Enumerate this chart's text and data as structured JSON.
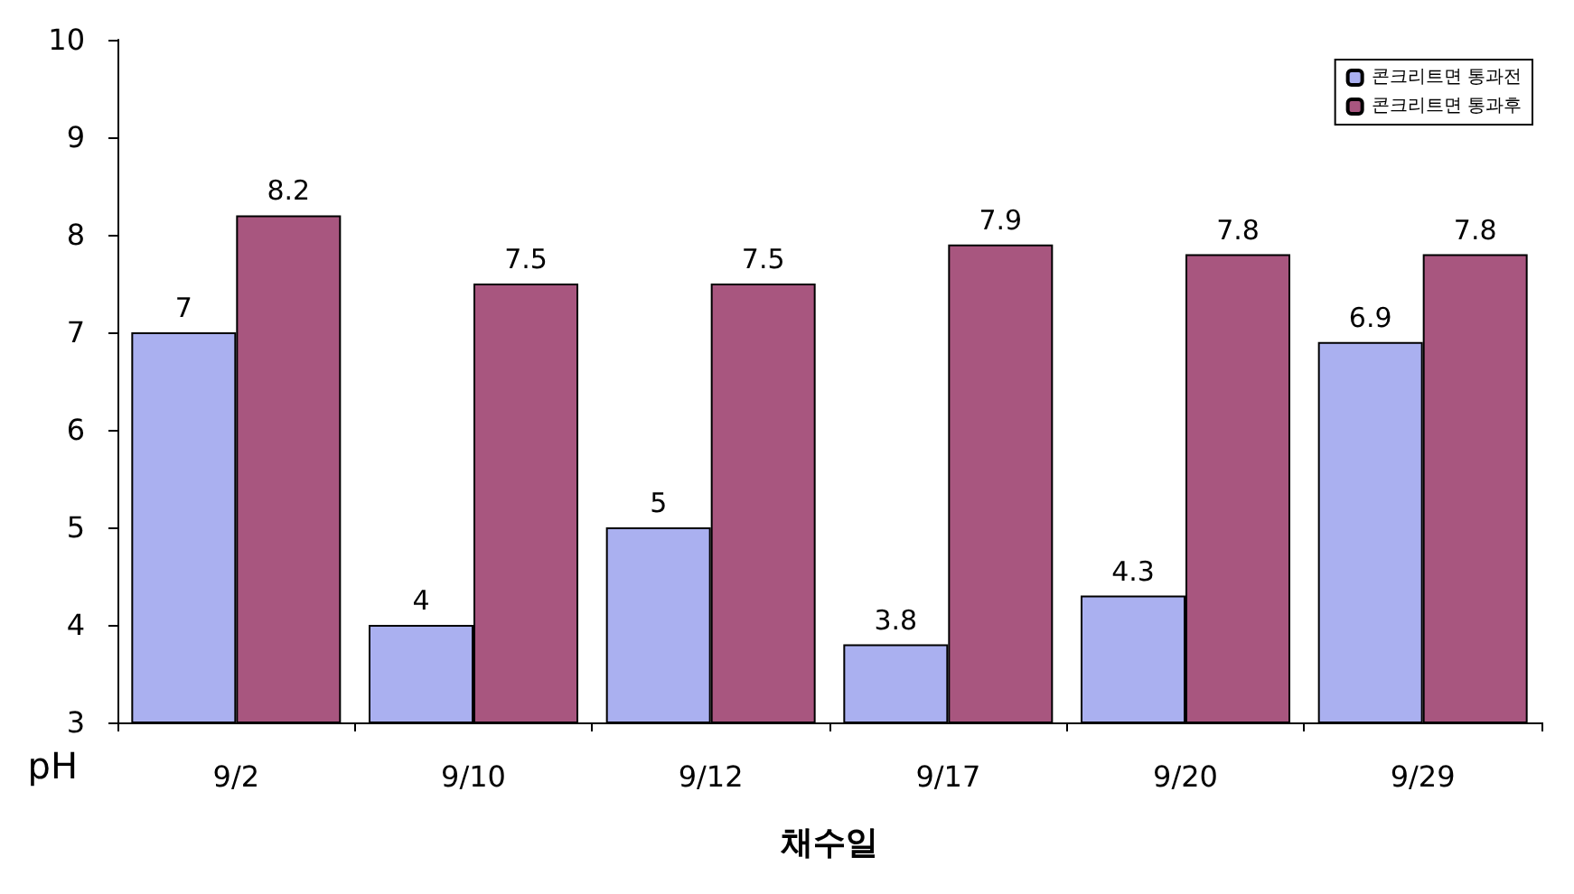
{
  "chart_data": {
    "type": "bar",
    "xlabel": "채수일",
    "ylabel": "pH",
    "categories": [
      "9/2",
      "9/10",
      "9/12",
      "9/17",
      "9/20",
      "9/29"
    ],
    "series": [
      {
        "name": "콘크리트면 통과전",
        "color": "#aab0f0",
        "values": [
          7,
          4,
          5,
          3.8,
          4.3,
          6.9
        ]
      },
      {
        "name": "콘크리트면 통과후",
        "color": "#a8567f",
        "values": [
          8.2,
          7.5,
          7.5,
          7.9,
          7.8,
          7.8
        ]
      }
    ],
    "ylim": [
      3,
      10
    ],
    "yticks": [
      3,
      4,
      5,
      6,
      7,
      8,
      9,
      10
    ],
    "grid": false,
    "legend": "top right",
    "data_labels": true
  }
}
